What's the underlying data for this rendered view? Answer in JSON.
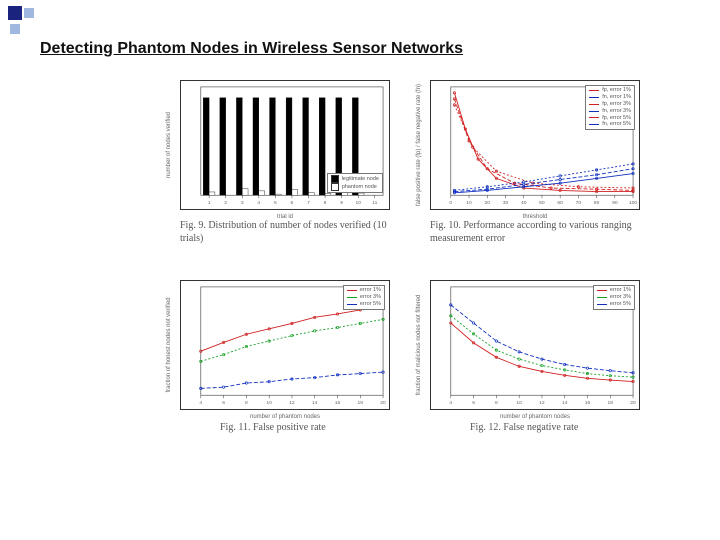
{
  "slide": {
    "title": "Detecting Phantom Nodes in Wireless Sensor Networks"
  },
  "accent": {
    "color1": "#1a237e",
    "color2": "#a0b8e0"
  },
  "fig9": {
    "type": "bar",
    "caption": "Fig. 9.   Distribution of number of nodes verified (10 trials)",
    "xlabel": "trial id",
    "ylabel": "number of nodes verified",
    "categories": [
      "1",
      "2",
      "3",
      "4",
      "5",
      "6",
      "7",
      "8",
      "9",
      "10"
    ],
    "series": {
      "legit": {
        "label": "legitimate node",
        "color": "#000000",
        "values": [
          18,
          18,
          18,
          18,
          18,
          18,
          18,
          18,
          18,
          18
        ]
      },
      "phantom": {
        "label": "phantom node",
        "color": "#ffffff",
        "values": [
          0.6,
          0,
          1.2,
          0.8,
          0.2,
          1.0,
          0.5,
          0.3,
          0.9,
          0.4
        ]
      }
    },
    "ylim": [
      0,
      20
    ],
    "yticks": [
      "0",
      "2",
      "4",
      "6",
      "8",
      "10",
      "12",
      "14",
      "16",
      "18",
      "20"
    ],
    "xticks": [
      "1",
      "2",
      "3",
      "4",
      "5",
      "6",
      "7",
      "8",
      "9",
      "10",
      "11"
    ]
  },
  "fig10": {
    "type": "line",
    "caption": "Fig. 10.   Performance according to various ranging measurement error",
    "xlabel": "threshold",
    "ylabel": "false positive rate (fp) / false negative rate (fn)",
    "xlim": [
      0,
      100
    ],
    "ylim": [
      0,
      0.9
    ],
    "xticks": [
      "0",
      "10",
      "20",
      "30",
      "40",
      "50",
      "60",
      "70",
      "80",
      "90",
      "100"
    ],
    "legend_items": [
      {
        "label": "fp, error 1%",
        "color": "#d02020"
      },
      {
        "label": "fn, error 1%",
        "color": "#1030c0"
      },
      {
        "label": "fp, error 3%",
        "color": "#d02020"
      },
      {
        "label": "fn, error 3%",
        "color": "#1030c0"
      },
      {
        "label": "fp, error 5%",
        "color": "#d02020"
      },
      {
        "label": "fn, error 5%",
        "color": "#1030c0"
      }
    ],
    "series": [
      {
        "color": "#d02020",
        "dash": "",
        "pts": [
          [
            2,
            0.85
          ],
          [
            8,
            0.55
          ],
          [
            15,
            0.3
          ],
          [
            25,
            0.14
          ],
          [
            40,
            0.06
          ],
          [
            60,
            0.04
          ],
          [
            80,
            0.03
          ],
          [
            100,
            0.03
          ]
        ]
      },
      {
        "color": "#d02020",
        "dash": "4,2",
        "pts": [
          [
            2,
            0.8
          ],
          [
            10,
            0.45
          ],
          [
            20,
            0.22
          ],
          [
            35,
            0.1
          ],
          [
            55,
            0.06
          ],
          [
            80,
            0.05
          ],
          [
            100,
            0.04
          ]
        ]
      },
      {
        "color": "#d02020",
        "dash": "2,2",
        "pts": [
          [
            2,
            0.75
          ],
          [
            12,
            0.4
          ],
          [
            25,
            0.2
          ],
          [
            45,
            0.1
          ],
          [
            70,
            0.07
          ],
          [
            100,
            0.06
          ]
        ]
      },
      {
        "color": "#1030c0",
        "dash": "",
        "pts": [
          [
            2,
            0.02
          ],
          [
            20,
            0.04
          ],
          [
            40,
            0.07
          ],
          [
            60,
            0.1
          ],
          [
            80,
            0.14
          ],
          [
            100,
            0.18
          ]
        ]
      },
      {
        "color": "#1030c0",
        "dash": "4,2",
        "pts": [
          [
            2,
            0.03
          ],
          [
            20,
            0.05
          ],
          [
            40,
            0.09
          ],
          [
            60,
            0.13
          ],
          [
            80,
            0.17
          ],
          [
            100,
            0.22
          ]
        ]
      },
      {
        "color": "#1030c0",
        "dash": "2,2",
        "pts": [
          [
            2,
            0.04
          ],
          [
            20,
            0.07
          ],
          [
            40,
            0.11
          ],
          [
            60,
            0.16
          ],
          [
            80,
            0.21
          ],
          [
            100,
            0.26
          ]
        ]
      }
    ]
  },
  "fig11": {
    "type": "line",
    "caption": "Fig. 11.   False positive rate",
    "xlabel": "number of phantom nodes",
    "ylabel": "fraction of honest nodes not verified",
    "xlim": [
      4,
      20
    ],
    "ylim": [
      0,
      0.16
    ],
    "xticks": [
      "4",
      "6",
      "8",
      "10",
      "12",
      "14",
      "16",
      "18",
      "20"
    ],
    "legend_items": [
      {
        "label": "error 1%",
        "color": "#d02020"
      },
      {
        "label": "error 3%",
        "color": "#10a020"
      },
      {
        "label": "error 5%",
        "color": "#1030c0"
      }
    ],
    "series": [
      {
        "color": "#1030c0",
        "dash": "4,2",
        "pts": [
          [
            4,
            0.01
          ],
          [
            6,
            0.012
          ],
          [
            8,
            0.018
          ],
          [
            10,
            0.02
          ],
          [
            12,
            0.024
          ],
          [
            14,
            0.026
          ],
          [
            16,
            0.03
          ],
          [
            18,
            0.032
          ],
          [
            20,
            0.034
          ]
        ]
      },
      {
        "color": "#10a020",
        "dash": "2,2",
        "pts": [
          [
            4,
            0.05
          ],
          [
            6,
            0.06
          ],
          [
            8,
            0.072
          ],
          [
            10,
            0.08
          ],
          [
            12,
            0.088
          ],
          [
            14,
            0.095
          ],
          [
            16,
            0.1
          ],
          [
            18,
            0.106
          ],
          [
            20,
            0.112
          ]
        ]
      },
      {
        "color": "#d02020",
        "dash": "",
        "pts": [
          [
            4,
            0.065
          ],
          [
            6,
            0.078
          ],
          [
            8,
            0.09
          ],
          [
            10,
            0.098
          ],
          [
            12,
            0.106
          ],
          [
            14,
            0.115
          ],
          [
            16,
            0.12
          ],
          [
            18,
            0.126
          ],
          [
            20,
            0.132
          ]
        ]
      }
    ]
  },
  "fig12": {
    "type": "line",
    "caption": "Fig. 12.   False negative rate",
    "xlabel": "number of phantom nodes",
    "ylabel": "fraction of malicious nodes not filtered",
    "xlim": [
      4,
      20
    ],
    "ylim": [
      0,
      0.3
    ],
    "xticks": [
      "4",
      "6",
      "8",
      "10",
      "12",
      "14",
      "16",
      "18",
      "20"
    ],
    "legend_items": [
      {
        "label": "error 1%",
        "color": "#d02020"
      },
      {
        "label": "error 3%",
        "color": "#10a020"
      },
      {
        "label": "error 5%",
        "color": "#1030c0"
      }
    ],
    "series": [
      {
        "color": "#1030c0",
        "dash": "4,2",
        "pts": [
          [
            4,
            0.25
          ],
          [
            6,
            0.2
          ],
          [
            8,
            0.15
          ],
          [
            10,
            0.12
          ],
          [
            12,
            0.1
          ],
          [
            14,
            0.085
          ],
          [
            16,
            0.075
          ],
          [
            18,
            0.068
          ],
          [
            20,
            0.062
          ]
        ]
      },
      {
        "color": "#10a020",
        "dash": "2,2",
        "pts": [
          [
            4,
            0.22
          ],
          [
            6,
            0.17
          ],
          [
            8,
            0.125
          ],
          [
            10,
            0.1
          ],
          [
            12,
            0.082
          ],
          [
            14,
            0.07
          ],
          [
            16,
            0.06
          ],
          [
            18,
            0.054
          ],
          [
            20,
            0.05
          ]
        ]
      },
      {
        "color": "#d02020",
        "dash": "",
        "pts": [
          [
            4,
            0.2
          ],
          [
            6,
            0.145
          ],
          [
            8,
            0.105
          ],
          [
            10,
            0.08
          ],
          [
            12,
            0.066
          ],
          [
            14,
            0.055
          ],
          [
            16,
            0.047
          ],
          [
            18,
            0.042
          ],
          [
            20,
            0.038
          ]
        ]
      }
    ]
  }
}
